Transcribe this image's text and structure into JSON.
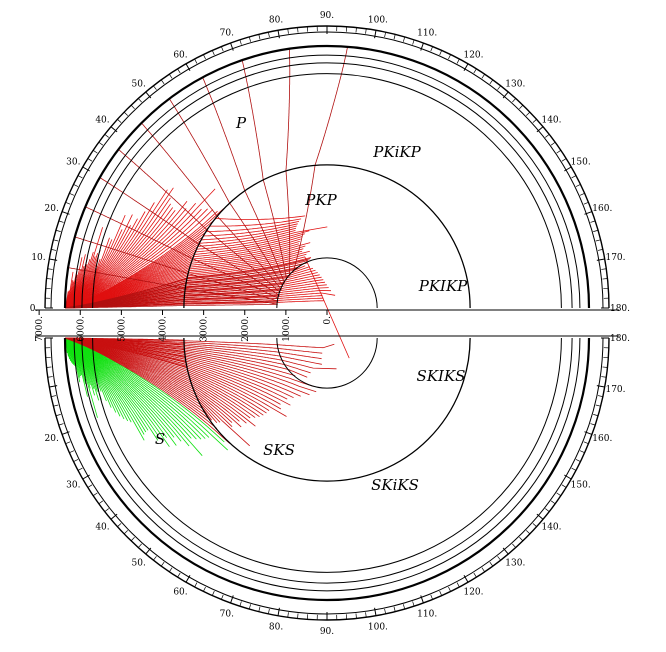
{
  "figure": {
    "upper_ticks": [
      "0.",
      "10.",
      "20.",
      "30.",
      "40.",
      "50.",
      "60.",
      "70.",
      "80.",
      "90.",
      "100.",
      "110.",
      "120.",
      "130.",
      "140.",
      "150.",
      "160.",
      "170.",
      "180."
    ],
    "lower_ticks": [
      "180.",
      "170.",
      "160.",
      "150.",
      "140.",
      "130.",
      "120.",
      "110.",
      "100.",
      "90.",
      "80.",
      "70.",
      "60.",
      "50.",
      "40.",
      "30.",
      "20."
    ],
    "radius_ticks": [
      "7000.",
      "6000.",
      "5000.",
      "4000.",
      "3000.",
      "2000.",
      "1000.",
      "0."
    ],
    "phase_labels": {
      "upper": [
        "P",
        "PKiKP",
        "PKP",
        "PKIKP"
      ],
      "lower": [
        "SKIKS",
        "S",
        "SKS",
        "SKiKS"
      ]
    },
    "colors": {
      "p_rays": "#e01010",
      "s_rays": "#10e010",
      "s_core_rays": "#c81010",
      "boundaries": "#000000"
    }
  }
}
